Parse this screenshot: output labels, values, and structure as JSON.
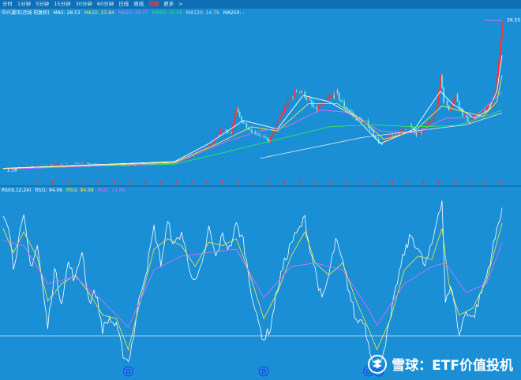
{
  "tabs": [
    {
      "label": "分时",
      "active": false
    },
    {
      "label": "1分钟",
      "active": false
    },
    {
      "label": "5分钟",
      "active": false
    },
    {
      "label": "15分钟",
      "active": false
    },
    {
      "label": "30分钟",
      "active": false
    },
    {
      "label": "60分钟",
      "active": false
    },
    {
      "label": "日线",
      "active": false
    },
    {
      "label": "周线",
      "active": false
    },
    {
      "label": "月线",
      "active": true
    },
    {
      "label": "更多",
      "active": false
    },
    {
      "label": ">",
      "active": false
    }
  ],
  "legend_top": [
    {
      "text": "中兴通讯(月线 前复权)",
      "color": "#ffffff"
    },
    {
      "text": "MA5: 28.53",
      "color": "#ffffff"
    },
    {
      "text": "MA10: 23.84",
      "color": "#f7ee3c"
    },
    {
      "text": "MA20: 19.77",
      "color": "#e36ff2"
    },
    {
      "text": "MA60: 15.44",
      "color": "#2ee85a"
    },
    {
      "text": "MA120: 14.79",
      "color": "#dddddd"
    },
    {
      "text": "MA250: -",
      "color": "#ffffff"
    }
  ],
  "legend_bottom": [
    {
      "text": "RSI(6,12,24)",
      "color": "#ffffff"
    },
    {
      "text": "RSI1: 94.06",
      "color": "#ffffff"
    },
    {
      "text": "RSI2: 84.98",
      "color": "#f7ee3c"
    },
    {
      "text": "RSI3: 73.66",
      "color": "#e36ff2"
    }
  ],
  "price_labels": {
    "high": "36.55",
    "low": "1.18"
  },
  "markers": [
    {
      "label": "D"
    },
    {
      "label": "D"
    },
    {
      "label": "D"
    },
    {
      "label": "D"
    }
  ],
  "watermark": {
    "text": "雪球：ETF价值投机"
  },
  "colors": {
    "background": "#1a8fd6",
    "tabbar": "#0f6fb4",
    "up_candle": "#ff3030",
    "down_candle": "#6ff0f0",
    "ma5": "#ffffff",
    "ma10": "#f7ee3c",
    "ma20": "#e36ff2",
    "ma60": "#2ee85a",
    "ma120": "#dddddd",
    "rsi1": "#ffffff",
    "rsi2": "#f7ee3c",
    "rsi3": "#e36ff2",
    "marker_circle": "#1a3cff"
  },
  "chart_data": [
    {
      "type": "candlestick",
      "title": "中兴通讯(月线 前复权)",
      "ylim": [
        0,
        38
      ],
      "last_close": 36.55,
      "low_price": 1.18,
      "close_anchors": [
        [
          0,
          1.6
        ],
        [
          15,
          2.0
        ],
        [
          30,
          2.6
        ],
        [
          45,
          2.9
        ],
        [
          60,
          2.4
        ],
        [
          75,
          2.2
        ],
        [
          90,
          2.6
        ],
        [
          105,
          3.5
        ],
        [
          115,
          5.5
        ],
        [
          122,
          7.5
        ],
        [
          128,
          11.0
        ],
        [
          133,
          10.0
        ],
        [
          136,
          15.5
        ],
        [
          140,
          12.5
        ],
        [
          145,
          10.5
        ],
        [
          150,
          9.5
        ],
        [
          155,
          8.0
        ],
        [
          160,
          12.5
        ],
        [
          166,
          17.5
        ],
        [
          172,
          20.5
        ],
        [
          176,
          19.0
        ],
        [
          182,
          15.5
        ],
        [
          188,
          17.5
        ],
        [
          194,
          19.5
        ],
        [
          200,
          16.0
        ],
        [
          206,
          13.5
        ],
        [
          212,
          12.5
        ],
        [
          217,
          9.0
        ],
        [
          221,
          7.0
        ],
        [
          225,
          9.0
        ],
        [
          231,
          10.0
        ],
        [
          237,
          12.0
        ],
        [
          241,
          9.5
        ],
        [
          245,
          10.5
        ],
        [
          249,
          13.0
        ],
        [
          253,
          16.0
        ],
        [
          255,
          24.0
        ],
        [
          257,
          18.0
        ],
        [
          260,
          16.0
        ],
        [
          264,
          19.0
        ],
        [
          268,
          14.5
        ],
        [
          272,
          12.5
        ],
        [
          276,
          14.0
        ],
        [
          280,
          15.0
        ],
        [
          284,
          16.5
        ],
        [
          287,
          20.0
        ],
        [
          289,
          26.0
        ],
        [
          291,
          36.55
        ]
      ],
      "ma_anchors": {
        "ma5": [
          [
            0,
            1.6
          ],
          [
            100,
            3.2
          ],
          [
            120,
            7.5
          ],
          [
            140,
            13.0
          ],
          [
            160,
            11.0
          ],
          [
            175,
            19.0
          ],
          [
            190,
            17.5
          ],
          [
            205,
            14.0
          ],
          [
            220,
            7.5
          ],
          [
            240,
            11.0
          ],
          [
            255,
            20.0
          ],
          [
            262,
            17.0
          ],
          [
            275,
            13.5
          ],
          [
            283,
            15.5
          ],
          [
            288,
            20.0
          ],
          [
            291,
            28.53
          ]
        ],
        "ma10": [
          [
            0,
            1.5
          ],
          [
            100,
            3.0
          ],
          [
            125,
            7.5
          ],
          [
            145,
            11.5
          ],
          [
            160,
            10.5
          ],
          [
            178,
            17.0
          ],
          [
            195,
            17.0
          ],
          [
            210,
            13.0
          ],
          [
            222,
            8.5
          ],
          [
            240,
            10.5
          ],
          [
            256,
            16.5
          ],
          [
            265,
            15.5
          ],
          [
            280,
            14.0
          ],
          [
            288,
            17.5
          ],
          [
            291,
            23.84
          ]
        ],
        "ma20": [
          [
            0,
            1.4
          ],
          [
            100,
            2.8
          ],
          [
            130,
            8.0
          ],
          [
            150,
            10.5
          ],
          [
            165,
            11.5
          ],
          [
            185,
            15.5
          ],
          [
            200,
            15.0
          ],
          [
            220,
            10.5
          ],
          [
            240,
            10.0
          ],
          [
            258,
            13.5
          ],
          [
            275,
            13.8
          ],
          [
            291,
            19.77
          ]
        ],
        "ma60": [
          [
            60,
            2.2
          ],
          [
            100,
            2.6
          ],
          [
            130,
            5.5
          ],
          [
            160,
            8.5
          ],
          [
            190,
            11.5
          ],
          [
            215,
            12.0
          ],
          [
            240,
            11.5
          ],
          [
            265,
            11.8
          ],
          [
            291,
            15.44
          ]
        ],
        "ma120": [
          [
            150,
            4.0
          ],
          [
            180,
            6.5
          ],
          [
            210,
            9.0
          ],
          [
            240,
            10.5
          ],
          [
            270,
            12.0
          ],
          [
            291,
            14.79
          ]
        ]
      }
    },
    {
      "type": "line",
      "title": "RSI(6,12,24)",
      "ylim": [
        0,
        100
      ],
      "series": [
        {
          "name": "RSI1",
          "last": 94.06,
          "points": [
            [
              0,
              92
            ],
            [
              3,
              85
            ],
            [
              6,
              60
            ],
            [
              9,
              75
            ],
            [
              12,
              88
            ],
            [
              16,
              60
            ],
            [
              20,
              72
            ],
            [
              24,
              40
            ],
            [
              26,
              25
            ],
            [
              30,
              58
            ],
            [
              34,
              40
            ],
            [
              38,
              62
            ],
            [
              42,
              52
            ],
            [
              46,
              70
            ],
            [
              50,
              40
            ],
            [
              54,
              45
            ],
            [
              58,
              24
            ],
            [
              62,
              30
            ],
            [
              66,
              25
            ],
            [
              70,
              10
            ],
            [
              73,
              5
            ],
            [
              76,
              20
            ],
            [
              80,
              45
            ],
            [
              84,
              60
            ],
            [
              88,
              82
            ],
            [
              92,
              62
            ],
            [
              96,
              85
            ],
            [
              100,
              72
            ],
            [
              104,
              80
            ],
            [
              108,
              62
            ],
            [
              112,
              50
            ],
            [
              116,
              60
            ],
            [
              120,
              82
            ],
            [
              124,
              65
            ],
            [
              128,
              78
            ],
            [
              132,
              70
            ],
            [
              136,
              84
            ],
            [
              140,
              75
            ],
            [
              144,
              50
            ],
            [
              148,
              30
            ],
            [
              152,
              18
            ],
            [
              156,
              25
            ],
            [
              160,
              48
            ],
            [
              164,
              62
            ],
            [
              168,
              74
            ],
            [
              172,
              80
            ],
            [
              176,
              88
            ],
            [
              178,
              75
            ],
            [
              182,
              58
            ],
            [
              186,
              40
            ],
            [
              190,
              55
            ],
            [
              194,
              75
            ],
            [
              198,
              62
            ],
            [
              202,
              45
            ],
            [
              206,
              28
            ],
            [
              210,
              30
            ],
            [
              214,
              12
            ],
            [
              218,
              2
            ],
            [
              222,
              12
            ],
            [
              226,
              30
            ],
            [
              230,
              52
            ],
            [
              234,
              68
            ],
            [
              238,
              78
            ],
            [
              242,
              70
            ],
            [
              246,
              60
            ],
            [
              250,
              72
            ],
            [
              254,
              92
            ],
            [
              256,
              98
            ],
            [
              258,
              40
            ],
            [
              262,
              48
            ],
            [
              266,
              20
            ],
            [
              270,
              35
            ],
            [
              274,
              30
            ],
            [
              278,
              42
            ],
            [
              282,
              55
            ],
            [
              286,
              72
            ],
            [
              291,
              94.06
            ]
          ]
        },
        {
          "name": "RSI2",
          "last": 84.98,
          "points": [
            [
              0,
              82
            ],
            [
              6,
              68
            ],
            [
              12,
              80
            ],
            [
              20,
              65
            ],
            [
              26,
              40
            ],
            [
              34,
              50
            ],
            [
              42,
              55
            ],
            [
              50,
              45
            ],
            [
              58,
              32
            ],
            [
              66,
              30
            ],
            [
              73,
              12
            ],
            [
              80,
              40
            ],
            [
              88,
              70
            ],
            [
              96,
              76
            ],
            [
              104,
              72
            ],
            [
              112,
              60
            ],
            [
              120,
              74
            ],
            [
              128,
              72
            ],
            [
              136,
              76
            ],
            [
              144,
              55
            ],
            [
              152,
              30
            ],
            [
              160,
              45
            ],
            [
              168,
              66
            ],
            [
              176,
              80
            ],
            [
              182,
              62
            ],
            [
              190,
              55
            ],
            [
              198,
              62
            ],
            [
              206,
              40
            ],
            [
              214,
              22
            ],
            [
              218,
              12
            ],
            [
              226,
              30
            ],
            [
              234,
              58
            ],
            [
              242,
              66
            ],
            [
              250,
              64
            ],
            [
              256,
              82
            ],
            [
              260,
              50
            ],
            [
              266,
              32
            ],
            [
              274,
              36
            ],
            [
              282,
              52
            ],
            [
              291,
              84.98
            ]
          ]
        },
        {
          "name": "RSI3",
          "last": 73.66,
          "points": [
            [
              0,
              75
            ],
            [
              12,
              72
            ],
            [
              26,
              50
            ],
            [
              42,
              54
            ],
            [
              58,
              40
            ],
            [
              73,
              25
            ],
            [
              88,
              58
            ],
            [
              104,
              66
            ],
            [
              120,
              68
            ],
            [
              136,
              70
            ],
            [
              152,
              42
            ],
            [
              168,
              60
            ],
            [
              182,
              62
            ],
            [
              198,
              58
            ],
            [
              214,
              34
            ],
            [
              218,
              26
            ],
            [
              234,
              50
            ],
            [
              250,
              60
            ],
            [
              258,
              62
            ],
            [
              270,
              45
            ],
            [
              282,
              50
            ],
            [
              291,
              73.66
            ]
          ]
        }
      ],
      "marker_bars": [
        73,
        152,
        213,
        219
      ]
    }
  ]
}
